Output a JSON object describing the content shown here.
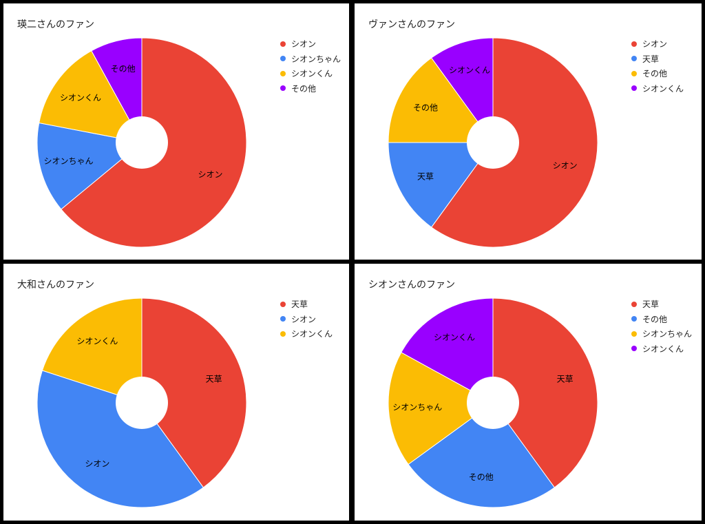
{
  "chart_data": [
    {
      "type": "pie",
      "title": "瑛二さんのファン",
      "categories": [
        "シオン",
        "シオンちゃん",
        "シオンくん",
        "その他"
      ],
      "values": [
        64,
        14,
        14,
        8
      ],
      "colors": [
        "#ea4335",
        "#4285f4",
        "#fbbc04",
        "#9900ff"
      ],
      "donut": true,
      "legend": "right"
    },
    {
      "type": "pie",
      "title": "ヴァンさんのファン",
      "categories": [
        "シオン",
        "天草",
        "その他",
        "シオンくん"
      ],
      "values": [
        60,
        15,
        15,
        10
      ],
      "colors": [
        "#ea4335",
        "#4285f4",
        "#fbbc04",
        "#9900ff"
      ],
      "donut": true,
      "legend": "right"
    },
    {
      "type": "pie",
      "title": "大和さんのファン",
      "categories": [
        "天草",
        "シオン",
        "シオンくん"
      ],
      "values": [
        40,
        40,
        20
      ],
      "colors": [
        "#ea4335",
        "#4285f4",
        "#fbbc04"
      ],
      "donut": true,
      "legend": "right"
    },
    {
      "type": "pie",
      "title": "シオンさんのファン",
      "categories": [
        "天草",
        "その他",
        "シオンちゃん",
        "シオンくん"
      ],
      "values": [
        40,
        25,
        18,
        17
      ],
      "colors": [
        "#ea4335",
        "#4285f4",
        "#fbbc04",
        "#9900ff"
      ],
      "donut": true,
      "legend": "right"
    }
  ]
}
